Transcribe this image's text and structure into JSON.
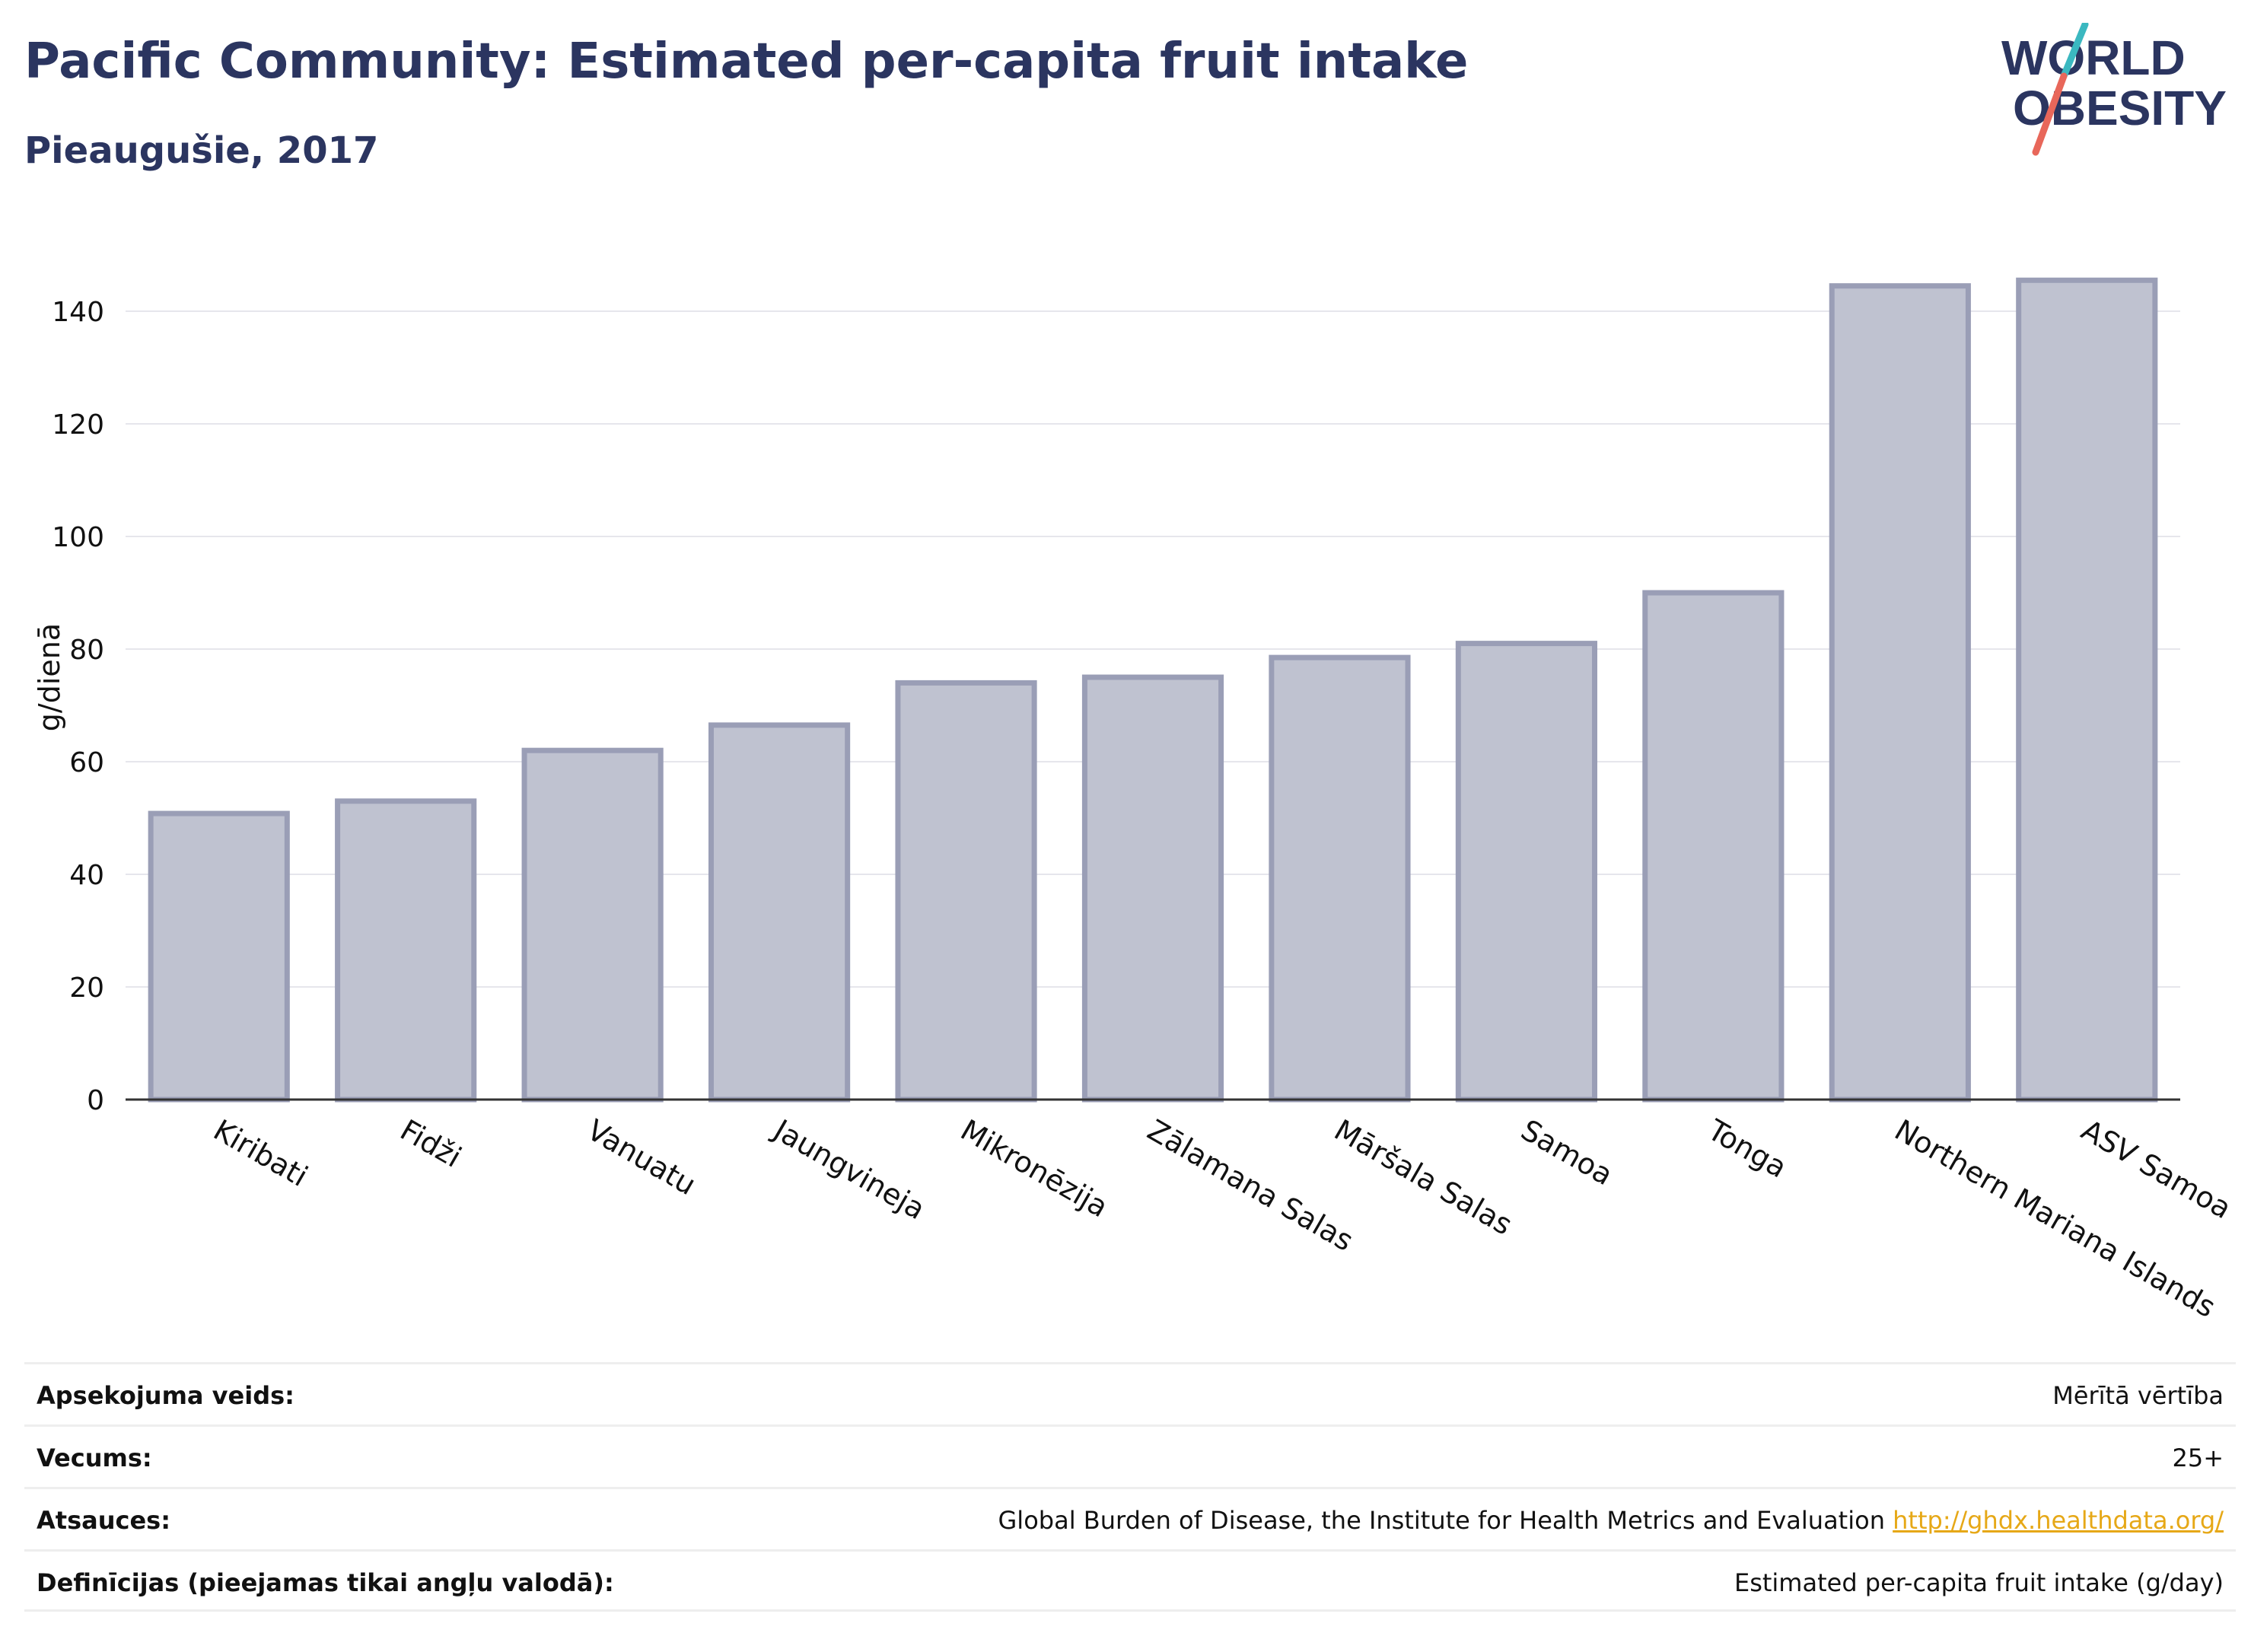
{
  "title": "Pacific Community: Estimated per-capita fruit intake",
  "subtitle": "Pieaugušie, 2017",
  "logo": {
    "line1": "WORLD",
    "line2": "OBESITY"
  },
  "colors": {
    "bar_fill": "#bfc2d0",
    "bar_stroke": "#9a9eb6",
    "text": "#2b3560",
    "accent_red": "#e8675a",
    "accent_teal": "#3bb8c0",
    "link": "#e6a817"
  },
  "chart_data": {
    "type": "bar",
    "ylabel": "g/dienā",
    "xlabel": "",
    "ylim": [
      0,
      150
    ],
    "yticks": [
      0,
      20,
      40,
      60,
      80,
      100,
      120,
      140
    ],
    "grid": true,
    "categories": [
      "Kiribati",
      "Fidži",
      "Vanuatu",
      "Jaungvineja",
      "Mikronēzija",
      "Zālamana Salas",
      "Māršala Salas",
      "Samoa",
      "Tonga",
      "Northern Mariana Islands",
      "ASV Samoa"
    ],
    "values": [
      50.8,
      53,
      62,
      66.5,
      74,
      75,
      78.5,
      81,
      90,
      144.5,
      145.5
    ]
  },
  "meta": [
    {
      "label": "Apsekojuma veids:",
      "value": "Mērītā vērtība"
    },
    {
      "label": "Vecums:",
      "value": "25+"
    },
    {
      "label": "Atsauces:",
      "value": "Global Burden of Disease, the Institute for Health Metrics and Evaluation",
      "link": "http://ghdx.healthdata.org/"
    },
    {
      "label": "Definīcijas (pieejamas tikai angļu valodā):",
      "value": "Estimated per-capita fruit intake (g/day)"
    }
  ]
}
